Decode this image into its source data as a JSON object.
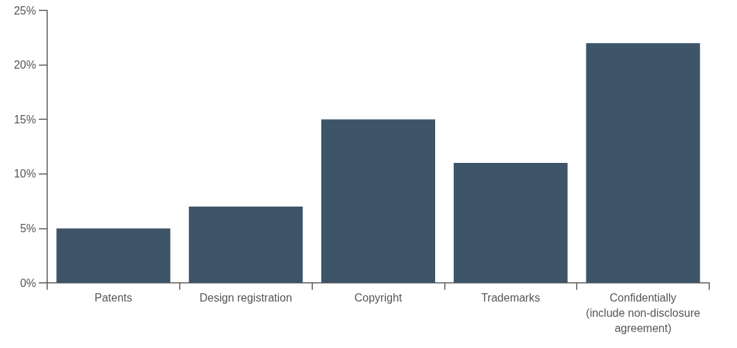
{
  "chart_data": {
    "type": "bar",
    "categories": [
      "Patents",
      "Design registration",
      "Copyright",
      "Trademarks",
      "Confidentially\n(include non-disclosure\nagreement)"
    ],
    "values": [
      5,
      7,
      15,
      11,
      22
    ],
    "color": "#3e5468",
    "ylim": [
      0,
      25
    ],
    "yticks": [
      {
        "value": 0,
        "label": "0%"
      },
      {
        "value": 5,
        "label": "5%"
      },
      {
        "value": 10,
        "label": "10%"
      },
      {
        "value": 15,
        "label": "15%"
      },
      {
        "value": 20,
        "label": "20%"
      },
      {
        "value": 25,
        "label": "25%"
      }
    ],
    "grid": false
  }
}
